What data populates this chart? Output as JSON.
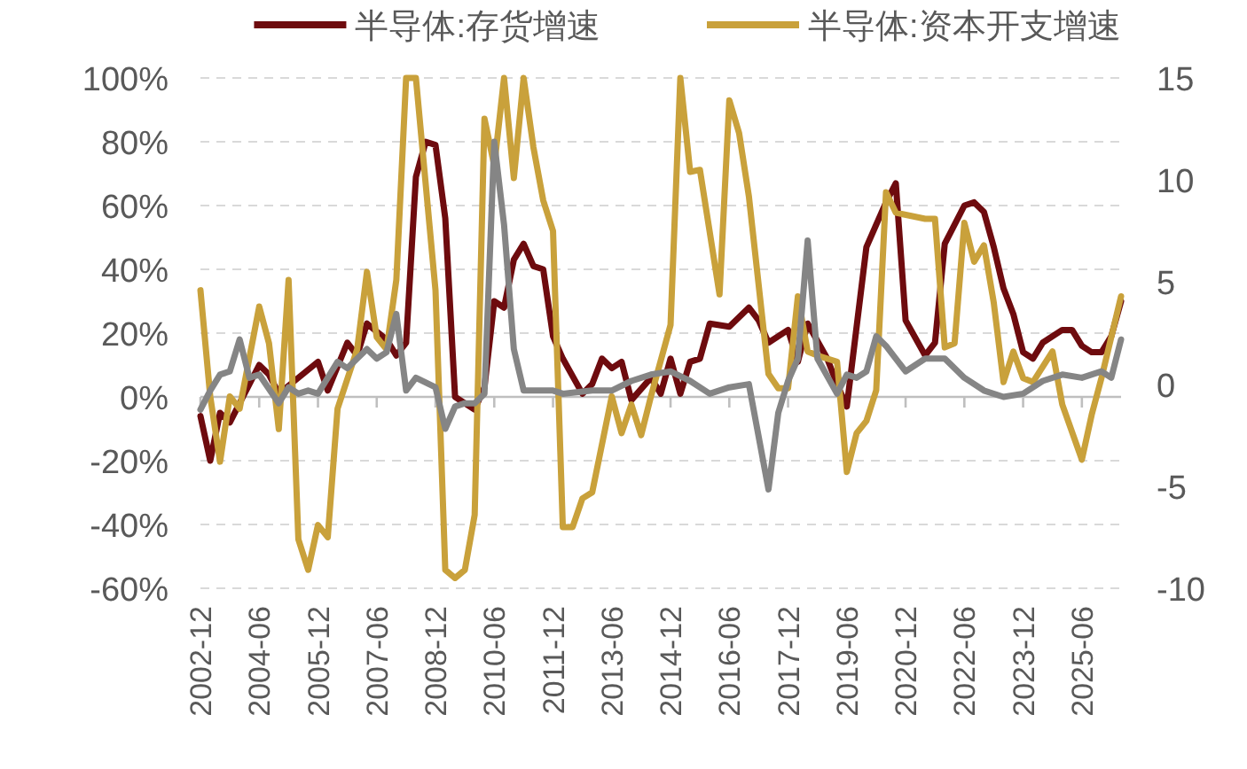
{
  "chart_data": {
    "type": "line",
    "legend": "top",
    "grid": "y",
    "xlim": [
      "2002-12",
      "2026-06"
    ],
    "xticks": [
      "2002-12",
      "2004-06",
      "2005-12",
      "2007-06",
      "2008-12",
      "2010-06",
      "2011-12",
      "2013-06",
      "2014-12",
      "2016-06",
      "2017-12",
      "2019-06",
      "2020-12",
      "2022-06",
      "2023-12",
      "2025-06"
    ],
    "ylim": [
      -60,
      100
    ],
    "yticks": [
      {
        "value": -60,
        "label": "-60%"
      },
      {
        "value": -40,
        "label": "-40%"
      },
      {
        "value": -20,
        "label": "-20%"
      },
      {
        "value": 0,
        "label": "0%"
      },
      {
        "value": 20,
        "label": "20%"
      },
      {
        "value": 40,
        "label": "40%"
      },
      {
        "value": 60,
        "label": "60%"
      },
      {
        "value": 80,
        "label": "80%"
      },
      {
        "value": 100,
        "label": "100%"
      }
    ],
    "y2lim": [
      -10,
      15
    ],
    "y2ticks": [
      -10,
      -5,
      0,
      5,
      10,
      15
    ],
    "series": [
      {
        "name": "半导体:存货增速",
        "color": "#6e0b0e",
        "x": [
          "2002-12",
          "2003-03",
          "2003-06",
          "2003-09",
          "2003-12",
          "2004-06",
          "2004-09",
          "2004-12",
          "2005-06",
          "2005-12",
          "2006-03",
          "2006-09",
          "2006-12",
          "2007-03",
          "2007-09",
          "2007-12",
          "2008-03",
          "2008-06",
          "2008-09",
          "2008-12",
          "2009-03",
          "2009-06",
          "2009-12",
          "2010-03",
          "2010-06",
          "2010-09",
          "2010-12",
          "2011-03",
          "2011-06",
          "2011-09",
          "2011-12",
          "2012-03",
          "2012-09",
          "2012-12",
          "2013-03",
          "2013-06",
          "2013-09",
          "2013-12",
          "2014-06",
          "2014-09",
          "2014-12",
          "2015-03",
          "2015-06",
          "2015-09",
          "2015-12",
          "2016-06",
          "2016-12",
          "2017-03",
          "2017-06",
          "2017-12",
          "2018-03",
          "2018-06",
          "2018-12",
          "2019-03",
          "2019-06",
          "2019-12",
          "2020-06",
          "2020-09",
          "2020-12",
          "2021-06",
          "2021-09",
          "2021-12",
          "2022-06",
          "2022-09",
          "2022-12",
          "2023-03",
          "2023-06",
          "2023-09",
          "2023-12",
          "2024-03",
          "2024-06",
          "2024-12",
          "2025-03",
          "2025-06",
          "2025-09",
          "2025-12",
          "2026-03",
          "2026-06"
        ],
        "values": [
          -6,
          -20,
          -5,
          -8,
          -2,
          10,
          7,
          1,
          6,
          11,
          2,
          17,
          13,
          23,
          18,
          13,
          17,
          69,
          80,
          79,
          56,
          0,
          -4,
          3,
          30,
          28,
          43,
          48,
          41,
          40,
          19,
          12,
          1,
          4,
          12,
          9,
          11,
          -1,
          6,
          1,
          12,
          1,
          11,
          12,
          23,
          22,
          28,
          24,
          17,
          21,
          11,
          23,
          12,
          4,
          -3,
          47,
          61,
          67,
          24,
          13,
          17,
          48,
          60,
          61,
          58,
          47,
          34,
          26,
          14,
          12,
          17,
          21,
          21,
          16,
          14,
          14,
          19,
          30
        ]
      },
      {
        "name": "半导体:资本开支增速",
        "color": "#c9a13b",
        "axis": "y2",
        "x": [
          "2002-12",
          "2003-03",
          "2003-06",
          "2003-09",
          "2003-12",
          "2004-06",
          "2004-09",
          "2004-12",
          "2005-03",
          "2005-06",
          "2005-09",
          "2005-12",
          "2006-03",
          "2006-06",
          "2006-12",
          "2007-03",
          "2007-06",
          "2007-09",
          "2007-12",
          "2008-03",
          "2008-06",
          "2008-12",
          "2009-03",
          "2009-06",
          "2009-09",
          "2009-12",
          "2010-03",
          "2010-06",
          "2010-09",
          "2010-12",
          "2011-03",
          "2011-06",
          "2011-09",
          "2011-12",
          "2012-03",
          "2012-06",
          "2012-09",
          "2012-12",
          "2013-06",
          "2013-09",
          "2013-12",
          "2014-03",
          "2014-06",
          "2014-12",
          "2015-03",
          "2015-06",
          "2015-09",
          "2016-03",
          "2016-06",
          "2016-09",
          "2016-12",
          "2017-06",
          "2017-09",
          "2017-12",
          "2018-03",
          "2018-06",
          "2018-09",
          "2019-03",
          "2019-06",
          "2019-09",
          "2019-12",
          "2020-03",
          "2020-06",
          "2020-09",
          "2021-06",
          "2021-09",
          "2021-12",
          "2022-03",
          "2022-06",
          "2022-09",
          "2022-12",
          "2023-03",
          "2023-06",
          "2023-09",
          "2023-12",
          "2024-03",
          "2024-09",
          "2024-12",
          "2025-06",
          "2025-09",
          "2025-12",
          "2026-06"
        ],
        "values": [
          4.6,
          -0.6,
          -3.8,
          -0.6,
          -1.2,
          3.8,
          2.0,
          -2.2,
          5.1,
          -7.6,
          -9.1,
          -6.9,
          -7.5,
          -1.2,
          1.7,
          5.5,
          2.3,
          1.7,
          5.1,
          15,
          15,
          4.6,
          -9.1,
          -9.5,
          -9.1,
          -6.4,
          13,
          10.7,
          15,
          10.1,
          15,
          11.6,
          9.0,
          7.5,
          -7.0,
          -7.0,
          -5.6,
          -5.3,
          -0.6,
          -2.4,
          -1.0,
          -2.5,
          -0.6,
          2.9,
          15,
          10.4,
          10.5,
          4.4,
          13.9,
          12.3,
          9.2,
          0.5,
          -0.2,
          -0.2,
          4.3,
          1.6,
          1.4,
          1.1,
          -4.3,
          -2.4,
          -1.8,
          -0.3,
          9.4,
          8.4,
          8.1,
          8.1,
          1.8,
          2.0,
          7.9,
          6.0,
          6.8,
          4.0,
          0.1,
          1.6,
          0.3,
          0.1,
          1.6,
          -1.0,
          -3.7,
          -1.5,
          0.3,
          4.3
        ]
      },
      {
        "color": "#858585",
        "x": [
          "2002-12",
          "2003-03",
          "2003-06",
          "2003-09",
          "2003-12",
          "2004-03",
          "2004-06",
          "2004-12",
          "2005-03",
          "2005-06",
          "2005-09",
          "2005-12",
          "2006-06",
          "2006-09",
          "2007-03",
          "2007-06",
          "2007-09",
          "2007-12",
          "2008-03",
          "2008-06",
          "2008-12",
          "2009-03",
          "2009-06",
          "2009-09",
          "2009-12",
          "2010-03",
          "2010-06",
          "2010-09",
          "2010-12",
          "2011-03",
          "2011-12",
          "2012-03",
          "2012-12",
          "2013-06",
          "2013-12",
          "2014-06",
          "2014-12",
          "2015-06",
          "2015-12",
          "2016-06",
          "2016-12",
          "2017-06",
          "2017-09",
          "2017-12",
          "2018-03",
          "2018-06",
          "2018-09",
          "2019-03",
          "2019-06",
          "2019-09",
          "2019-12",
          "2020-03",
          "2020-06",
          "2020-12",
          "2021-06",
          "2021-09",
          "2021-12",
          "2022-06",
          "2022-12",
          "2023-06",
          "2023-12",
          "2024-06",
          "2024-12",
          "2025-06",
          "2025-12",
          "2026-03",
          "2026-06"
        ],
        "values": [
          -4,
          2,
          7,
          8,
          18,
          6,
          7,
          -2,
          3,
          1,
          2,
          1,
          11,
          9,
          15,
          12,
          14,
          26,
          2,
          6,
          3,
          -10,
          -3,
          -2,
          -2,
          1,
          80,
          54,
          15,
          2,
          2,
          1,
          2,
          2,
          5,
          7,
          8,
          5,
          1,
          3,
          4,
          -29,
          -5,
          5,
          12,
          49,
          12,
          1,
          7,
          6,
          8,
          19,
          16,
          8,
          12,
          12,
          12,
          6,
          2,
          0,
          1,
          5,
          7,
          6,
          8,
          6,
          18
        ]
      }
    ]
  }
}
